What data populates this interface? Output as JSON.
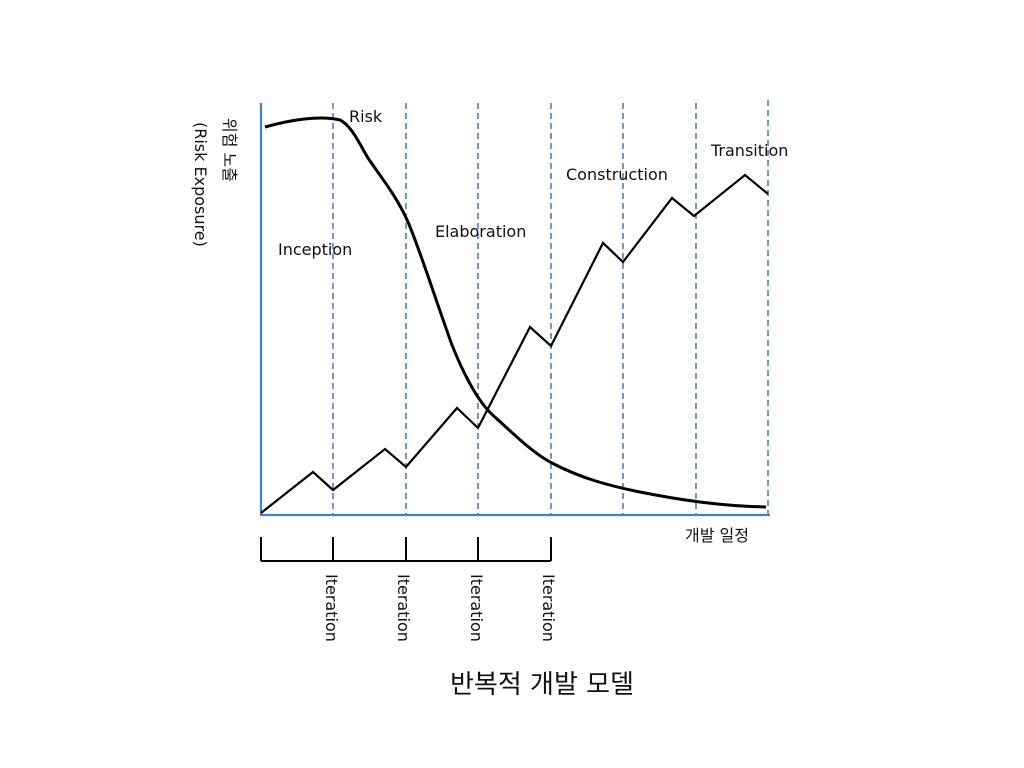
{
  "diagram": {
    "title": "반복적 개발 모델",
    "y_axis_label_line1": "위험 노출",
    "y_axis_label_line2": "(Risk Exposure)",
    "x_axis_label": "개발 일정",
    "curve_label": "Risk",
    "phases": [
      {
        "label": "Inception"
      },
      {
        "label": "Elaboration"
      },
      {
        "label": "Construction"
      },
      {
        "label": "Transition"
      }
    ],
    "iterations": [
      {
        "label": "Iteration"
      },
      {
        "label": "Iteration"
      },
      {
        "label": "Iteration"
      },
      {
        "label": "Iteration"
      }
    ],
    "colors": {
      "axis": "#4a7ebb",
      "dashed": "#4a7ebb",
      "curve": "#000000",
      "text": "#111111"
    }
  }
}
